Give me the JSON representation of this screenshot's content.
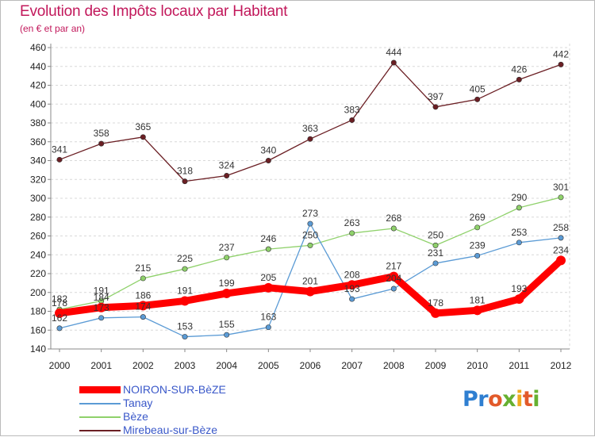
{
  "chart_data": {
    "type": "line",
    "title": "Evolution des Impôts locaux par Habitant",
    "subtitle": "(en € et par an)",
    "x": [
      "2000",
      "2001",
      "2002",
      "2003",
      "2004",
      "2005",
      "2006",
      "2007",
      "2008",
      "2009",
      "2010",
      "2011",
      "2012"
    ],
    "ylim": [
      140,
      460
    ],
    "yticks": [
      140,
      160,
      180,
      200,
      220,
      240,
      260,
      280,
      300,
      320,
      340,
      360,
      380,
      400,
      420,
      440,
      460
    ],
    "grid": "horizontal-dashed",
    "legend_position": "bottom-left",
    "series": [
      {
        "name": "NOIRON-SUR-BèZE",
        "color": "#ff0000",
        "values": [
          178,
          184,
          186,
          191,
          199,
          205,
          201,
          208,
          217,
          178,
          181,
          193,
          234
        ]
      },
      {
        "name": "Tanay",
        "color": "#5b9bd5",
        "values": [
          162,
          173,
          174,
          153,
          155,
          163,
          273,
          193,
          204,
          231,
          239,
          253,
          258
        ]
      },
      {
        "name": "Bèze",
        "color": "#8fd16b",
        "values": [
          182,
          191,
          215,
          225,
          237,
          246,
          250,
          263,
          268,
          250,
          269,
          290,
          301
        ]
      },
      {
        "name": "Mirebeau-sur-Bèze",
        "color": "#6b1f24",
        "values": [
          341,
          358,
          365,
          318,
          324,
          340,
          363,
          383,
          444,
          397,
          405,
          426,
          442
        ]
      }
    ]
  },
  "logo": {
    "p1": "Pr",
    "p2": "o",
    "p3": "x",
    "p4": "i",
    "p5": "t",
    "p6": "i"
  }
}
